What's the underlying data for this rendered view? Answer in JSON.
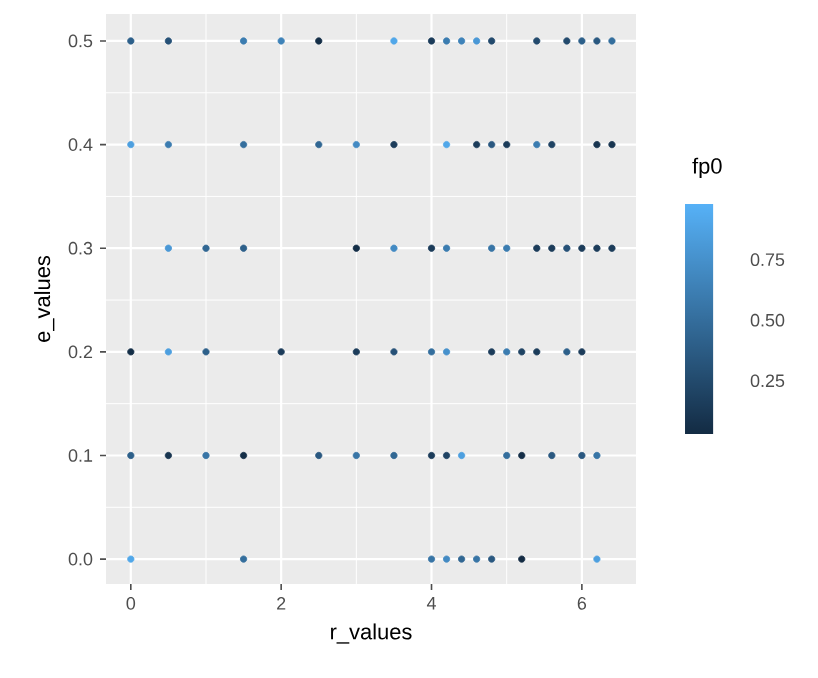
{
  "chart_data": {
    "type": "scatter",
    "xlabel": "r_values",
    "ylabel": "e_values",
    "clabel": "fp0",
    "x": [
      0,
      0.5,
      1.5,
      2,
      2.5,
      3.5,
      4,
      4.2,
      4.4,
      4.6,
      4.8,
      5.4,
      5.8,
      6,
      6.2,
      6.4,
      0,
      0.5,
      1.5,
      2.5,
      3,
      3.5,
      4.2,
      4.6,
      4.8,
      5,
      5.4,
      5.6,
      6.2,
      6.4,
      0.5,
      1,
      1.5,
      3,
      3.5,
      4,
      4.2,
      4.8,
      5,
      5.4,
      5.6,
      5.8,
      6,
      6.2,
      6.4,
      0,
      0.5,
      1,
      2,
      3,
      3.5,
      4,
      4.2,
      4.8,
      5,
      5.2,
      5.4,
      5.8,
      6,
      0,
      0.5,
      1,
      1.5,
      2.5,
      3,
      3.5,
      4,
      4.2,
      4.4,
      5,
      5.2,
      5.6,
      6,
      6.2,
      0,
      1.5,
      4,
      4.2,
      4.4,
      4.6,
      4.8,
      5.2,
      6.2
    ],
    "values": [
      0.5,
      0.5,
      0.5,
      0.5,
      0.5,
      0.5,
      0.5,
      0.5,
      0.5,
      0.5,
      0.5,
      0.5,
      0.5,
      0.5,
      0.5,
      0.5,
      0.4,
      0.4,
      0.4,
      0.4,
      0.4,
      0.4,
      0.4,
      0.4,
      0.4,
      0.4,
      0.4,
      0.4,
      0.4,
      0.4,
      0.3,
      0.3,
      0.3,
      0.3,
      0.3,
      0.3,
      0.3,
      0.3,
      0.3,
      0.3,
      0.3,
      0.3,
      0.3,
      0.3,
      0.3,
      0.2,
      0.2,
      0.2,
      0.2,
      0.2,
      0.2,
      0.2,
      0.2,
      0.2,
      0.2,
      0.2,
      0.2,
      0.2,
      0.2,
      0.1,
      0.1,
      0.1,
      0.1,
      0.1,
      0.1,
      0.1,
      0.1,
      0.1,
      0.1,
      0.1,
      0.1,
      0.1,
      0.1,
      0.1,
      0,
      0,
      0,
      0,
      0,
      0,
      0,
      0,
      0
    ],
    "cvalues": [
      0.4,
      0.3,
      0.6,
      0.65,
      0.05,
      0.9,
      0.15,
      0.6,
      0.65,
      0.8,
      0.25,
      0.25,
      0.25,
      0.4,
      0.35,
      0.5,
      0.85,
      0.6,
      0.5,
      0.45,
      0.7,
      0.15,
      0.9,
      0.15,
      0.35,
      0.15,
      0.6,
      0.2,
      0.1,
      0.1,
      0.8,
      0.45,
      0.4,
      0.05,
      0.7,
      0.15,
      0.6,
      0.55,
      0.6,
      0.15,
      0.15,
      0.3,
      0.15,
      0.15,
      0.15,
      0.05,
      0.85,
      0.4,
      0.15,
      0.15,
      0.3,
      0.5,
      0.75,
      0.15,
      0.6,
      0.2,
      0.15,
      0.4,
      0.15,
      0.4,
      0.1,
      0.55,
      0.05,
      0.35,
      0.55,
      0.45,
      0.15,
      0.2,
      0.85,
      0.5,
      0.05,
      0.35,
      0.35,
      0.55,
      0.9,
      0.5,
      0.55,
      0.7,
      0.45,
      0.55,
      0.35,
      0.03,
      0.85
    ],
    "clim": [
      0.03,
      0.98
    ],
    "cticks": [
      0.25,
      {
        "value": 0.5,
        "label": "0.50"
      },
      0.75
    ],
    "xlim": [
      -0.33,
      6.72
    ],
    "xticks": [
      0,
      2,
      4,
      6
    ],
    "ylim": [
      -0.024,
      0.526
    ],
    "yticks": [
      {
        "value": 0,
        "label": "0.0"
      },
      {
        "value": 0.1,
        "label": "0.1"
      },
      {
        "value": 0.2,
        "label": "0.2"
      },
      {
        "value": 0.3,
        "label": "0.3"
      },
      {
        "value": 0.4,
        "label": "0.4"
      },
      {
        "value": 0.5,
        "label": "0.5"
      }
    ],
    "grid": true,
    "marker": "circle"
  }
}
